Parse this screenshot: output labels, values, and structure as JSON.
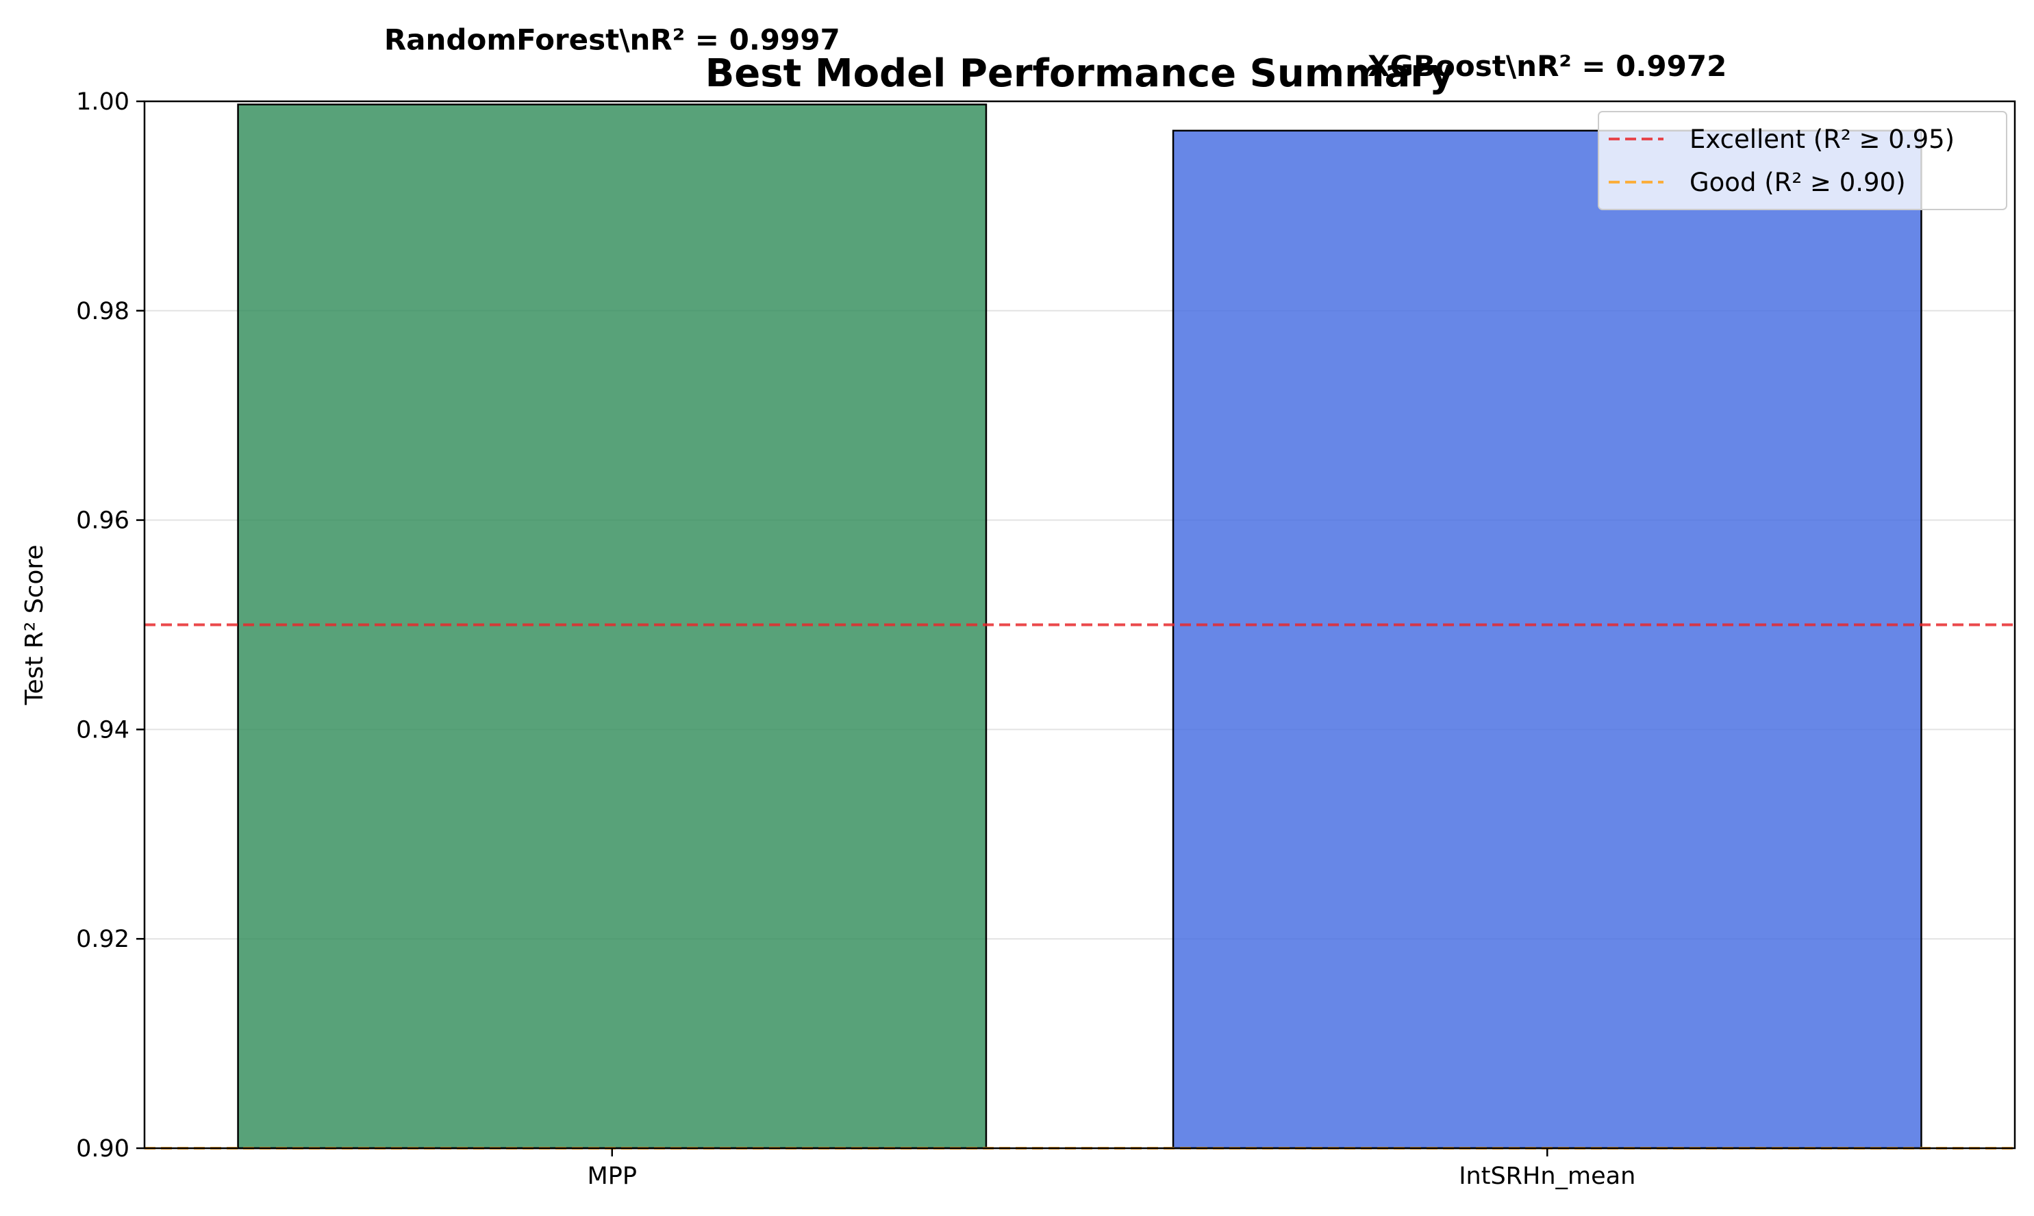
{
  "chart_data": {
    "type": "bar",
    "title": "Best Model Performance Summary",
    "xlabel": "",
    "ylabel": "Test R² Score",
    "categories": [
      "MPP",
      "IntSRHn_mean"
    ],
    "values": [
      0.9997,
      0.9972
    ],
    "bar_labels": [
      "RandomForest\\nR² = 0.9997",
      "XGBoost\\nR² = 0.9972"
    ],
    "bar_colors": [
      "#2e8b57",
      "#4169e1"
    ],
    "ylim": [
      0.9,
      1.0
    ],
    "yticks": [
      "0.90",
      "0.92",
      "0.94",
      "0.96",
      "0.98",
      "1.00"
    ],
    "reference_lines": [
      {
        "label": "Excellent (R² ≥ 0.95)",
        "value": 0.95,
        "color": "#e8282b",
        "style": "dashed"
      },
      {
        "label": "Good (R² ≥ 0.90)",
        "value": 0.9,
        "color": "#ffa31a",
        "style": "dashed"
      }
    ],
    "grid": "horizontal",
    "legend_position": "top-right"
  }
}
